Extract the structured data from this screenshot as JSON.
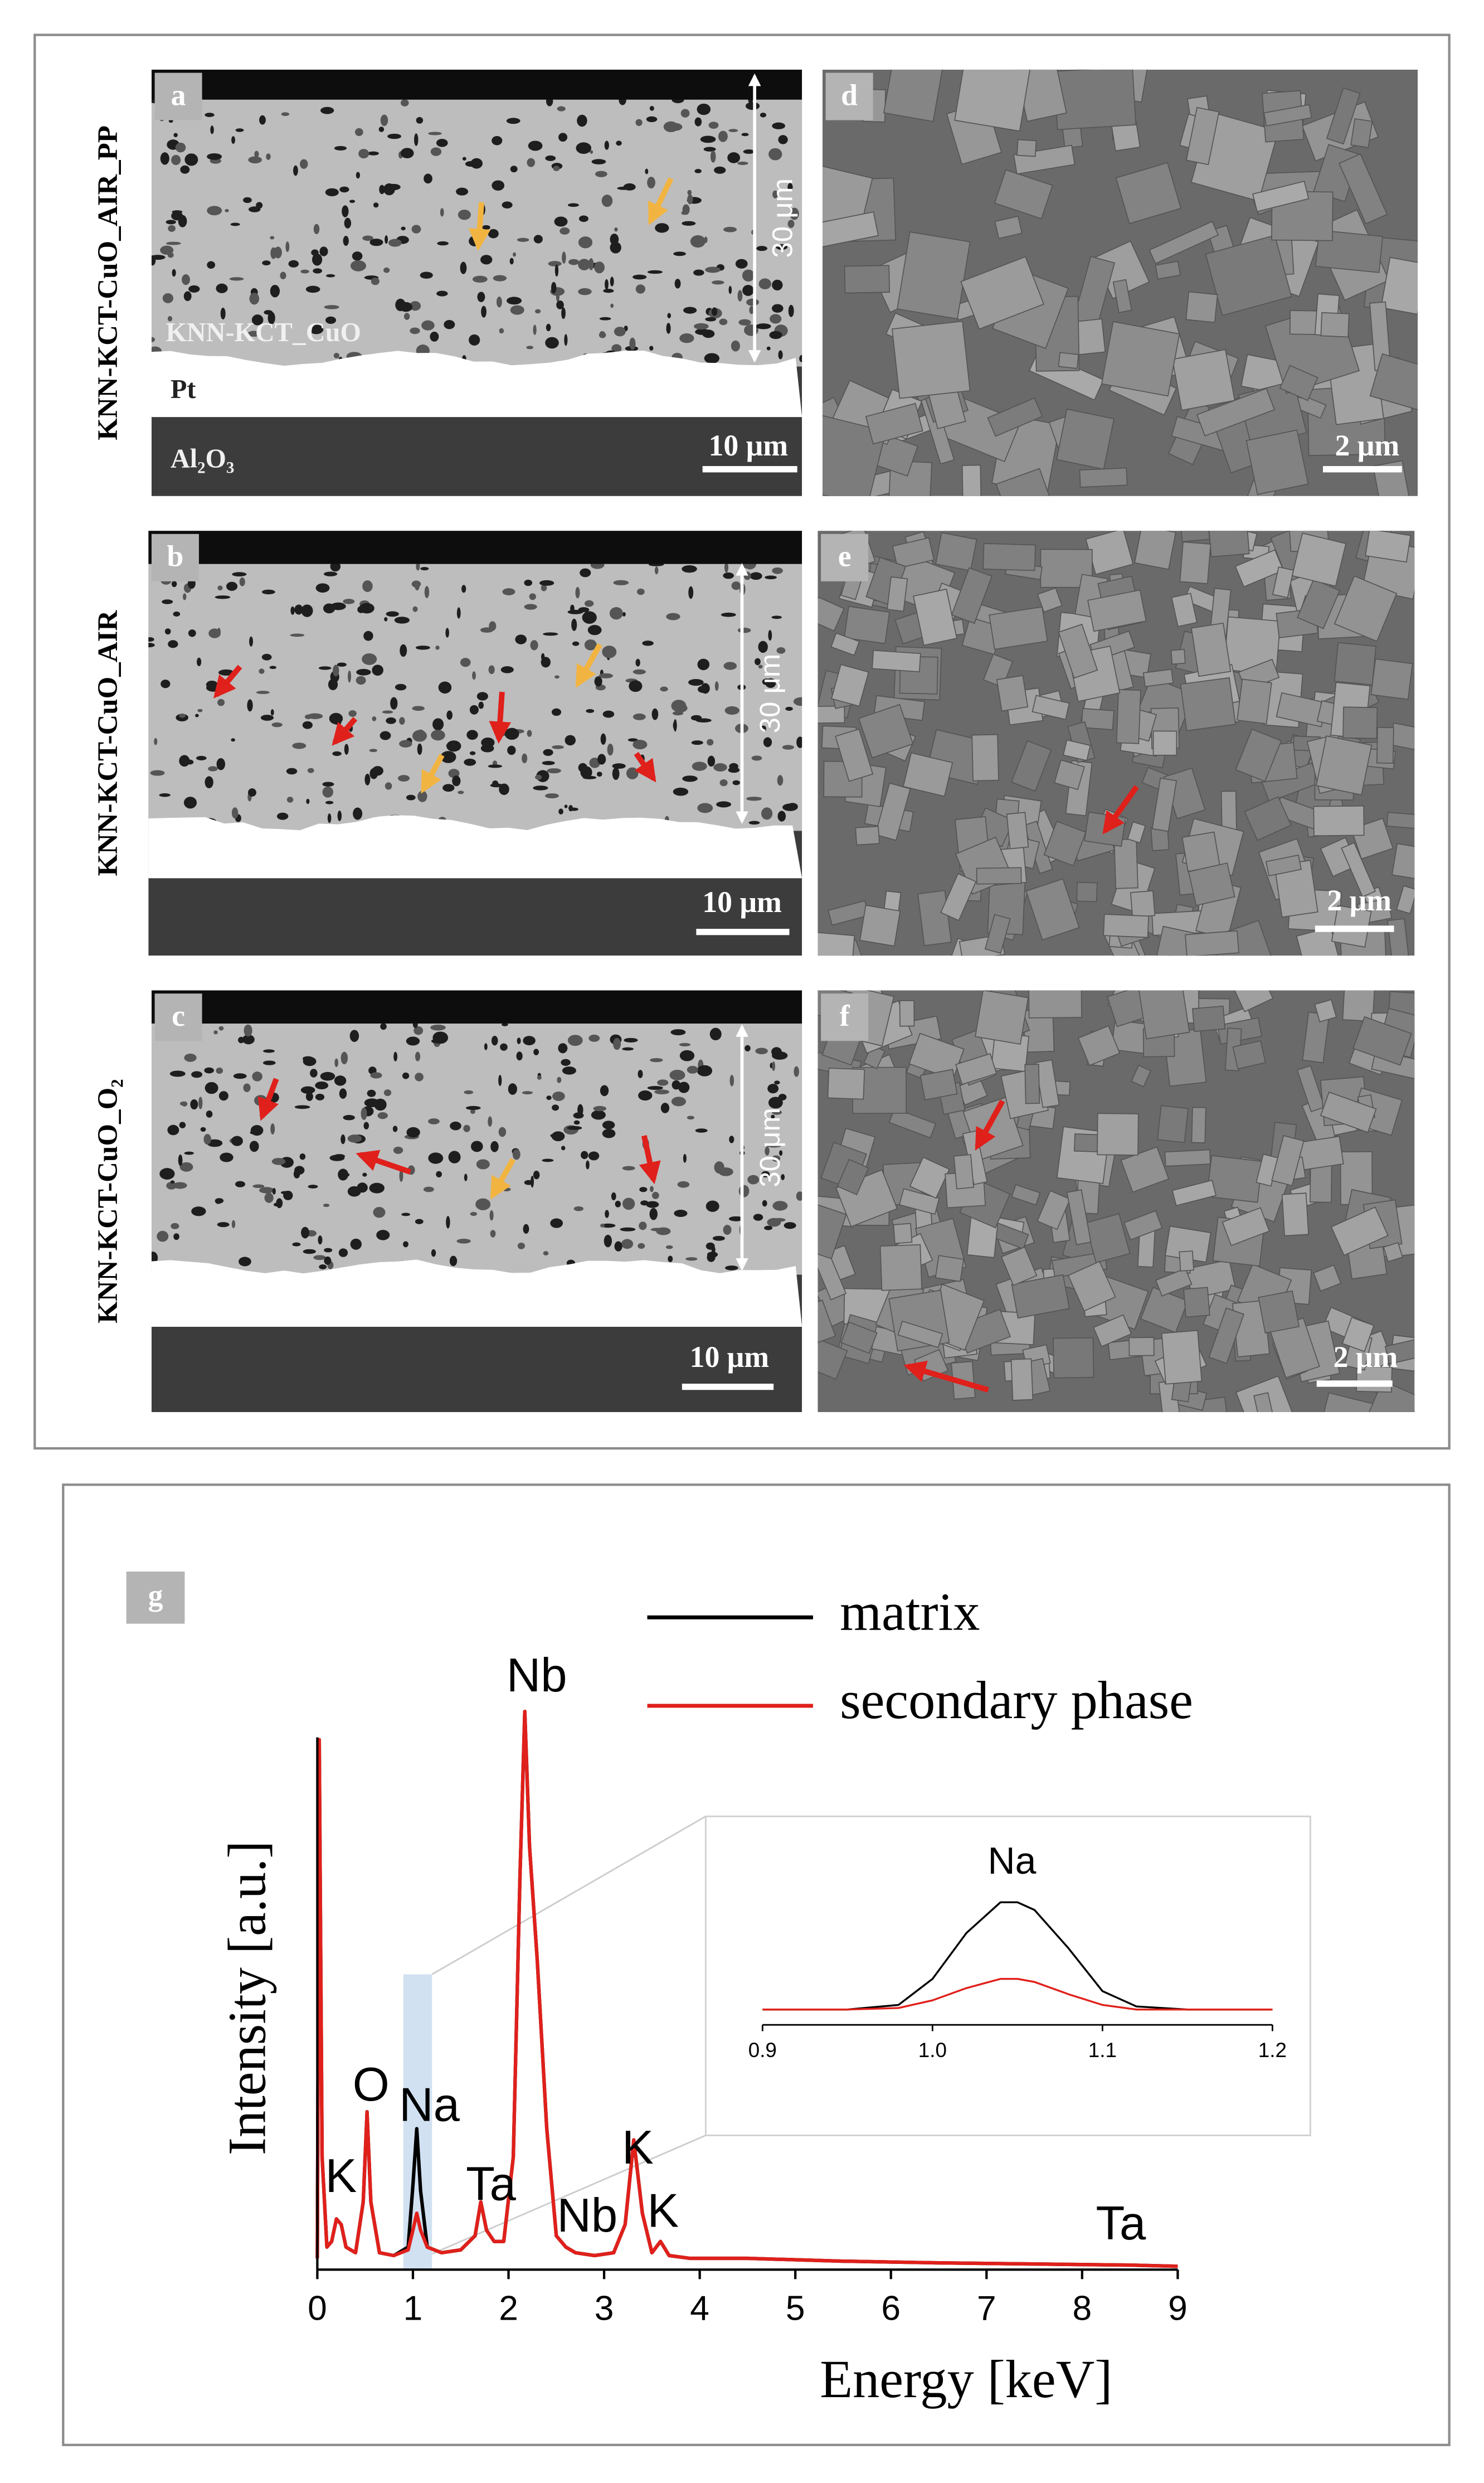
{
  "rows": [
    "KNN-KCT-CuO_AIR_PP",
    "KNN-KCT-CuO_AIR",
    "KNN-KCT-CuO_O₂"
  ],
  "sem_panels": [
    {
      "letter": "a",
      "scale_bar": "10 μm",
      "thickness": "30 μm",
      "layers": [
        "KNN-KCT_CuO",
        "Pt",
        "Al₂O₃"
      ]
    },
    {
      "letter": "d",
      "scale_bar": "2 μm"
    },
    {
      "letter": "b",
      "scale_bar": "10 μm",
      "thickness": "30 μm"
    },
    {
      "letter": "e",
      "scale_bar": "2 μm"
    },
    {
      "letter": "c",
      "scale_bar": "10 μm",
      "thickness": "30 μm"
    },
    {
      "letter": "f",
      "scale_bar": "2 μm"
    }
  ],
  "chart_data": [
    {
      "type": "line",
      "panel_label": "g",
      "x_label": "Energy [keV]",
      "y_label": "Intensity [a.u.]",
      "legend": "top-right",
      "annotations": [
        "K",
        "O",
        "Na",
        "Ta",
        "Nb",
        "Nb",
        "K",
        "K",
        "Ta"
      ],
      "xlim": [
        0,
        9
      ],
      "xticks": [
        0,
        1,
        2,
        3,
        4,
        5,
        6,
        7,
        8,
        9
      ],
      "ylim": [
        0,
        100
      ],
      "x": [
        0,
        0.02,
        0.05,
        0.1,
        0.15,
        0.2,
        0.25,
        0.3,
        0.4,
        0.48,
        0.52,
        0.56,
        0.65,
        0.8,
        0.95,
        1.0,
        1.04,
        1.08,
        1.15,
        1.3,
        1.5,
        1.65,
        1.71,
        1.77,
        1.85,
        1.95,
        2.05,
        2.12,
        2.17,
        2.22,
        2.3,
        2.4,
        2.5,
        2.6,
        2.7,
        2.9,
        3.1,
        3.22,
        3.31,
        3.4,
        3.5,
        3.59,
        3.68,
        3.9,
        4.5,
        5.5,
        6.5,
        7.5,
        8.5,
        9
      ],
      "series": [
        {
          "name": "matrix",
          "color": "#000000",
          "values": [
            2,
            94,
            20,
            4,
            5,
            9,
            8,
            4,
            3,
            12,
            28,
            12,
            3,
            2.5,
            4,
            15,
            25,
            14,
            4,
            3,
            3.5,
            6,
            12,
            7,
            5,
            5,
            20,
            70,
            99,
            75,
            55,
            25,
            6,
            4,
            3,
            2.5,
            3,
            8,
            23,
            10,
            3,
            5,
            2.5,
            2,
            2,
            1.5,
            1.2,
            1,
            0.8,
            0.6
          ]
        },
        {
          "name": "secondary phase",
          "color": "#e0201b",
          "values": [
            2,
            94,
            20,
            4,
            5,
            9,
            8,
            4,
            3,
            12,
            28,
            12,
            3,
            2.5,
            3.5,
            7,
            10,
            7,
            4,
            3,
            3.5,
            6,
            12,
            7,
            5,
            5,
            20,
            70,
            99,
            75,
            55,
            25,
            6,
            4,
            3,
            2.5,
            3,
            8,
            23,
            10,
            3,
            5,
            2.5,
            2,
            2,
            1.5,
            1.2,
            1,
            0.8,
            0.6
          ]
        }
      ]
    },
    {
      "type": "line",
      "annotation": "Na",
      "xlim": [
        0.9,
        1.2
      ],
      "xticks": [
        0.9,
        {
          "value": 1,
          "label": "1.0"
        },
        1.1,
        1.2
      ],
      "ylim": [
        0,
        100
      ],
      "x": [
        0.9,
        0.95,
        0.98,
        1.0,
        1.02,
        1.04,
        1.05,
        1.06,
        1.08,
        1.1,
        1.12,
        1.15,
        1.2
      ],
      "series": [
        {
          "name": "matrix",
          "color": "#000000",
          "values": [
            10,
            10,
            13,
            30,
            60,
            80,
            80,
            75,
            50,
            22,
            12,
            10,
            10
          ]
        },
        {
          "name": "secondary phase",
          "color": "#e0201b",
          "values": [
            10,
            10,
            11,
            16,
            24,
            30,
            30,
            28,
            20,
            13,
            10,
            10,
            10
          ]
        }
      ]
    }
  ]
}
